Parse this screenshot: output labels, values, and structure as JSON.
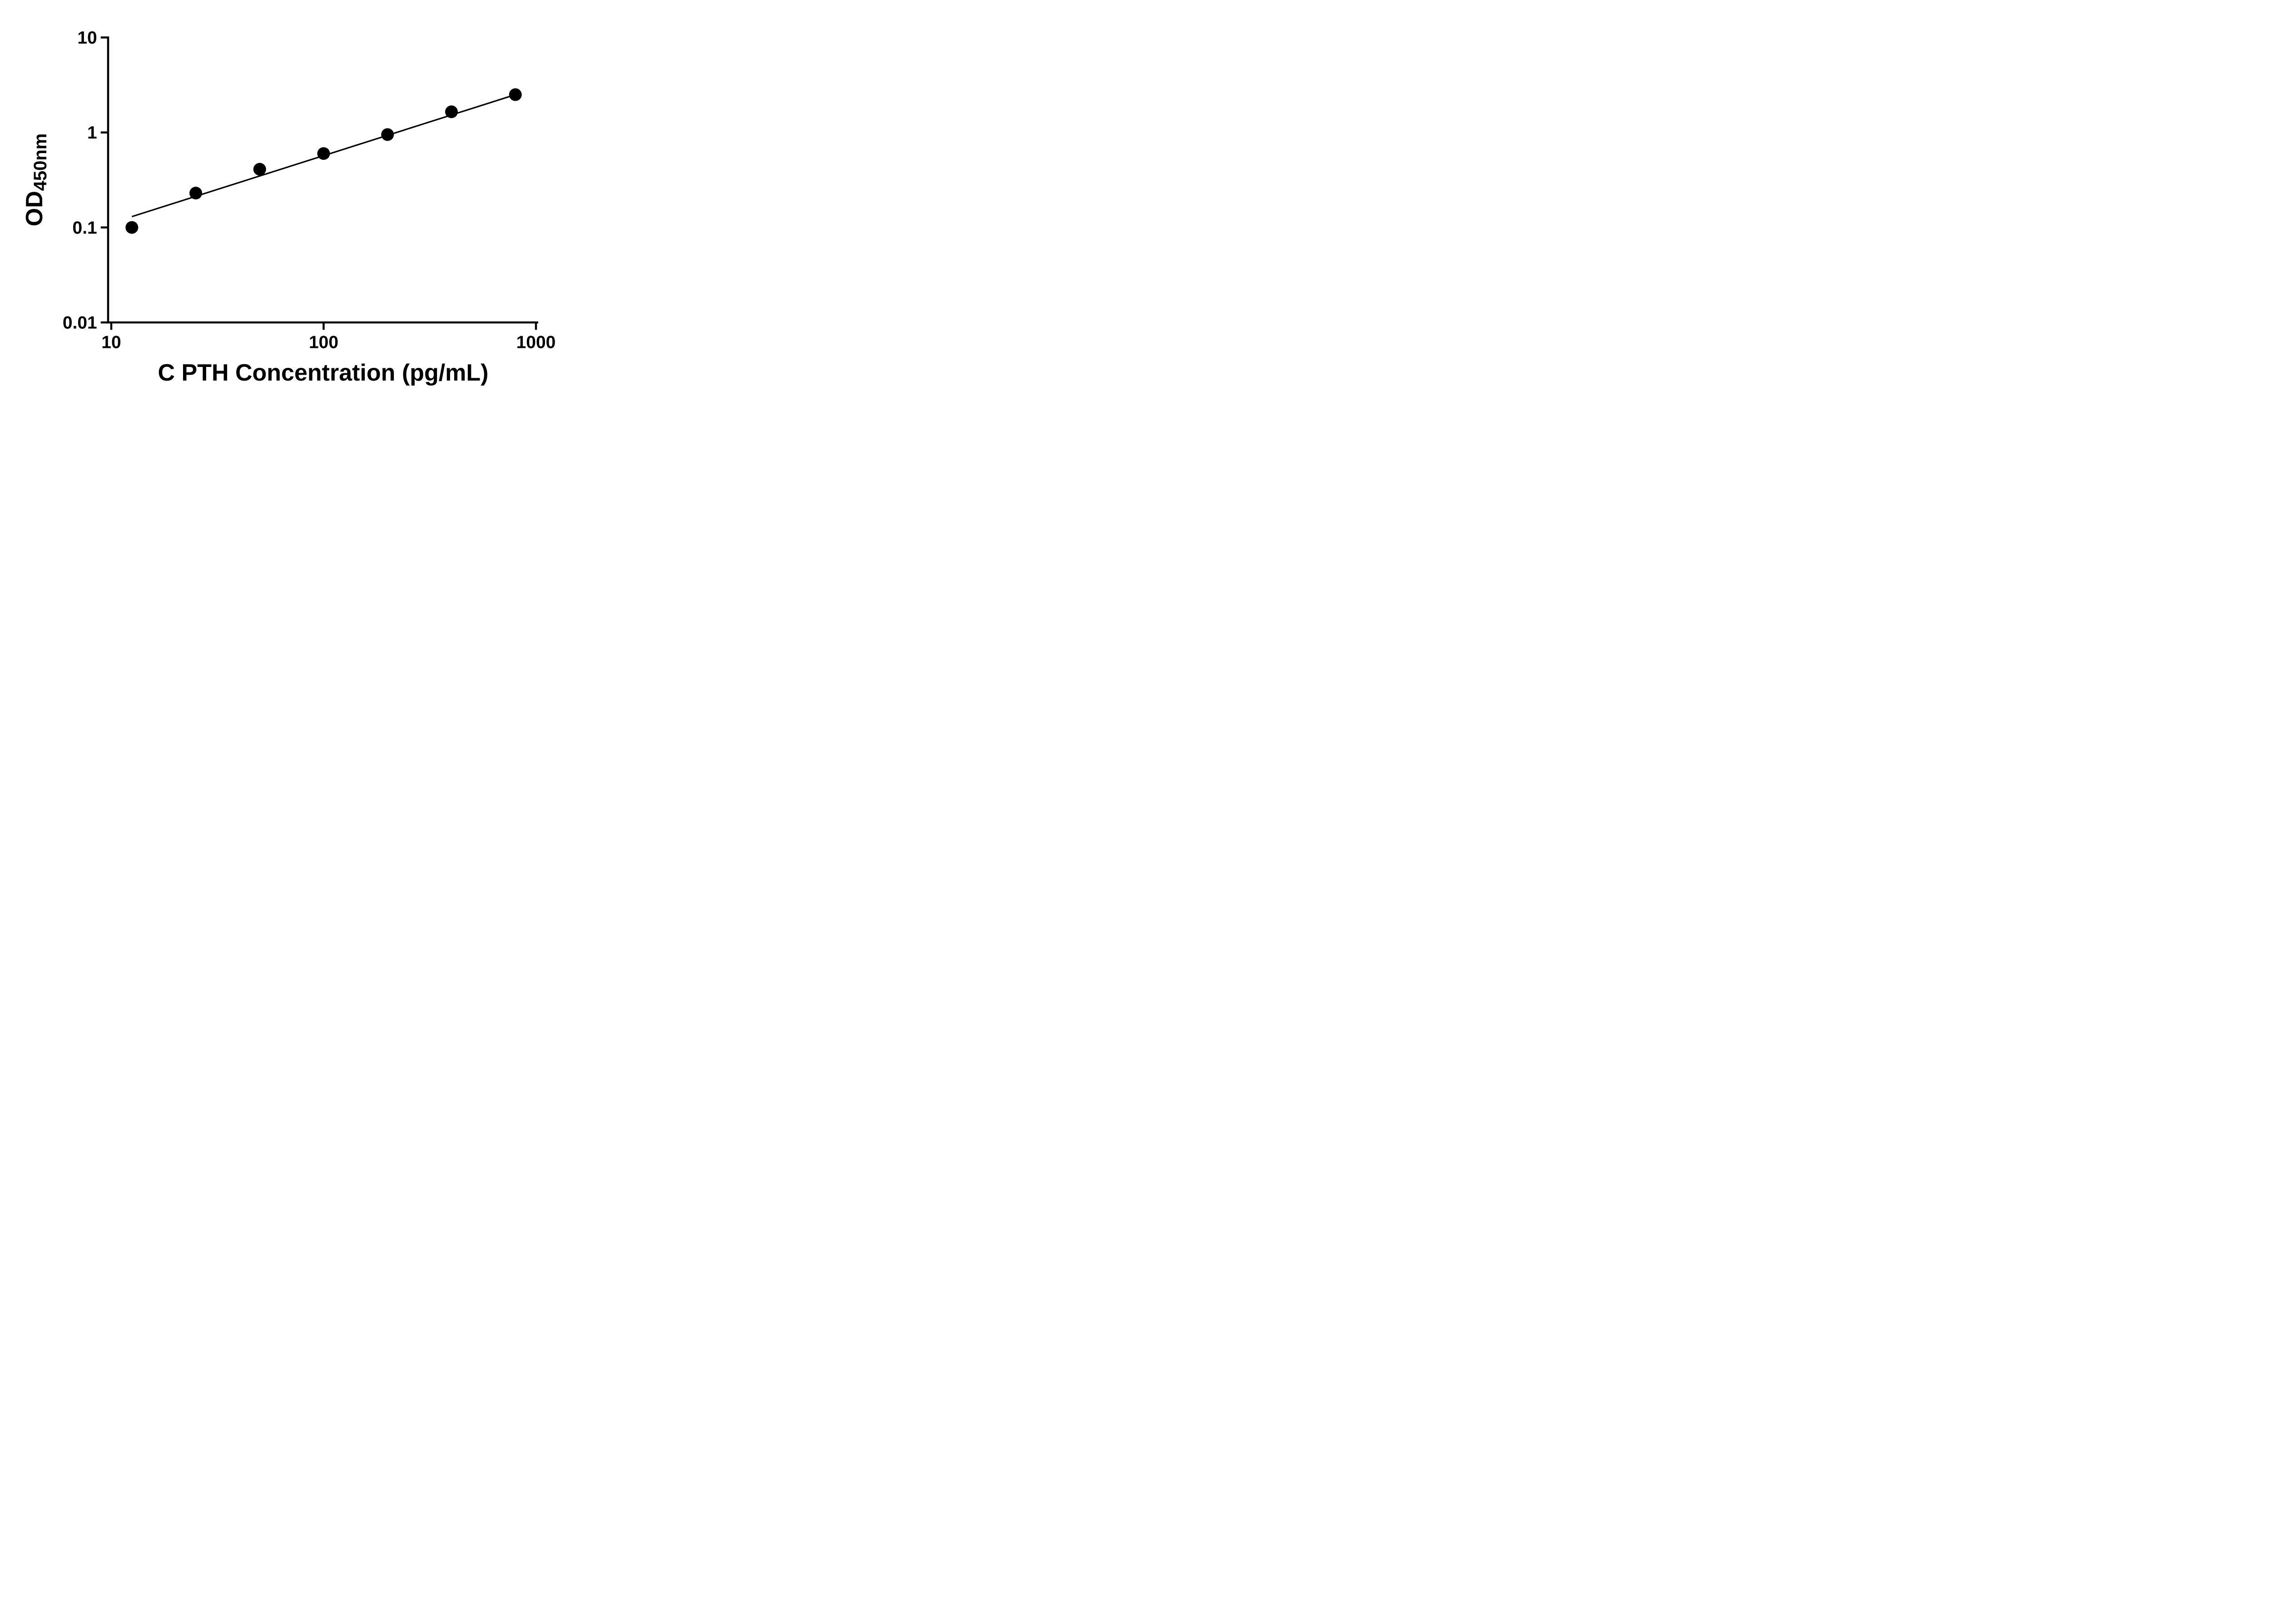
{
  "chart_data": {
    "type": "scatter",
    "title": "",
    "xlabel": "C PTH Concentration (pg/mL)",
    "ylabel": "OD",
    "ylabel_subscript": "450nm",
    "x_scale": "log",
    "y_scale": "log",
    "xlim": [
      10,
      1000
    ],
    "ylim": [
      0.01,
      10
    ],
    "x_ticks": [
      10,
      100,
      1000
    ],
    "x_tick_labels": [
      "10",
      "100",
      "1000"
    ],
    "y_ticks": [
      10,
      1,
      0.1,
      0.01
    ],
    "y_tick_labels": [
      "10",
      "1",
      "0.1",
      "0.01"
    ],
    "grid": "off",
    "legend": "none",
    "points": {
      "x": [
        12.5,
        25,
        50,
        100,
        200,
        400,
        800
      ],
      "y": [
        0.1,
        0.23,
        0.41,
        0.6,
        0.95,
        1.65,
        2.5
      ]
    },
    "trendline": {
      "x": [
        12.5,
        800
      ],
      "y": [
        0.13,
        2.5
      ]
    },
    "marker_color": "#000000",
    "line_color": "#000000",
    "text_color": "#000000",
    "background": "#ffffff"
  }
}
